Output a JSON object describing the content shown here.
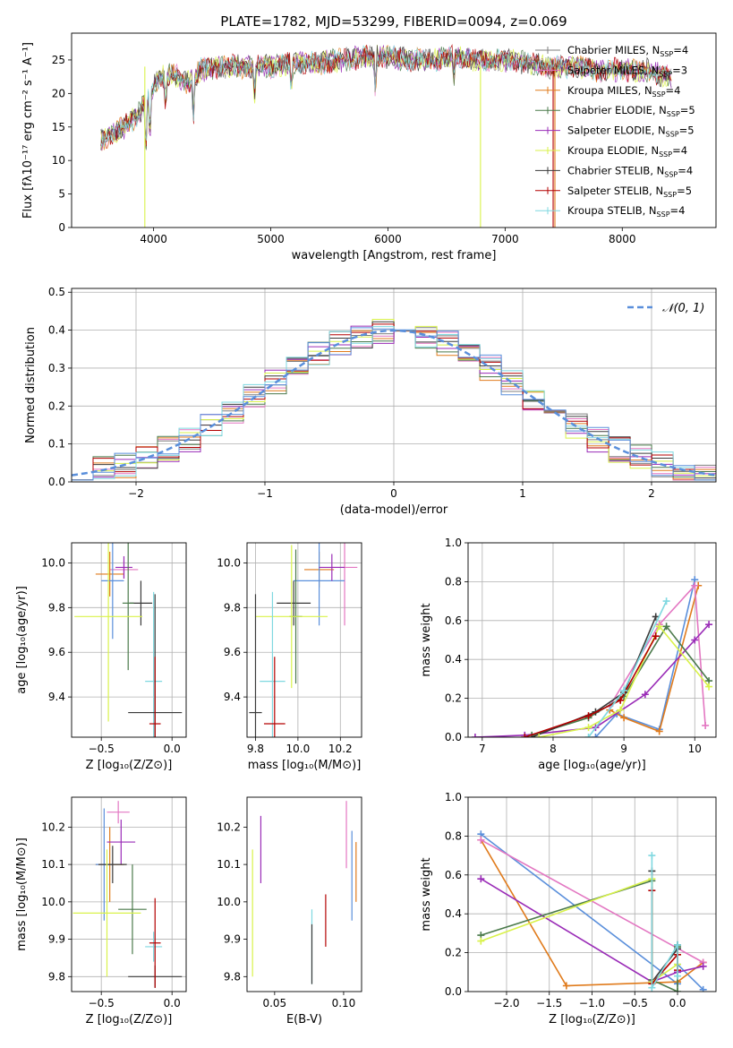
{
  "figure": {
    "title": "PLATE=1782, MJD=53299, FIBERID=0094, z=0.069"
  },
  "colors": {
    "chab_miles": "#7f7f7f",
    "salp_miles": "#e377c2",
    "krou_miles": "#e07b1c",
    "chab_elodie": "#4b7a4b",
    "salp_elodie": "#9a2cb7",
    "krou_elodie": "#d9f24a",
    "chab_stelib": "#3a3a3a",
    "salp_stelib": "#b30000",
    "krou_stelib": "#7fd8e0",
    "normal": "#5a8fdb",
    "blue": "#5a8fdb"
  },
  "chart_data": [
    {
      "id": "spectrum",
      "type": "line",
      "xlabel": "wavelength [Angstrom, rest frame]",
      "ylabel": "Flux [fλ10⁻¹⁷ erg cm⁻² s⁻¹ A⁻¹]",
      "xlim": [
        3300,
        8800
      ],
      "ylim": [
        0,
        29
      ],
      "xticks": [
        4000,
        5000,
        6000,
        7000,
        8000
      ],
      "yticks": [
        0,
        5,
        10,
        15,
        20,
        25
      ],
      "legend": "right",
      "series": [
        {
          "name": "Chabrier MILES, N_SSP=4",
          "color": "#7f7f7f"
        },
        {
          "name": "Salpeter MILES, N_SSP=3",
          "color": "#e377c2"
        },
        {
          "name": "Kroupa MILES, N_SSP=4",
          "color": "#e07b1c"
        },
        {
          "name": "Chabrier ELODIE, N_SSP=5",
          "color": "#4b7a4b"
        },
        {
          "name": "Salpeter ELODIE, N_SSP=5",
          "color": "#9a2cb7"
        },
        {
          "name": "Kroupa ELODIE, N_SSP=4",
          "color": "#d9f24a"
        },
        {
          "name": "Chabrier STELIB, N_SSP=4",
          "color": "#3a3a3a"
        },
        {
          "name": "Salpeter STELIB, N_SSP=5",
          "color": "#b30000"
        },
        {
          "name": "Kroupa STELIB, N_SSP=4",
          "color": "#7fd8e0"
        }
      ],
      "continuum": [
        [
          3550,
          13
        ],
        [
          3650,
          14
        ],
        [
          3750,
          15
        ],
        [
          3850,
          16.5
        ],
        [
          3950,
          19
        ],
        [
          4050,
          22.5
        ],
        [
          4150,
          23
        ],
        [
          4300,
          21.5
        ],
        [
          4400,
          23.5
        ],
        [
          4600,
          24
        ],
        [
          4800,
          24
        ],
        [
          5000,
          24
        ],
        [
          5200,
          24.5
        ],
        [
          5400,
          24.5
        ],
        [
          5600,
          25
        ],
        [
          5800,
          25.5
        ],
        [
          6000,
          25.5
        ],
        [
          6200,
          25
        ],
        [
          6400,
          25
        ],
        [
          6600,
          25.5
        ],
        [
          6800,
          25
        ],
        [
          7000,
          25
        ],
        [
          7200,
          24.5
        ],
        [
          7400,
          24
        ],
        [
          7600,
          24
        ],
        [
          7800,
          23.5
        ],
        [
          8000,
          23.5
        ],
        [
          8200,
          23.5
        ],
        [
          8400,
          22.5
        ]
      ],
      "dips": [
        [
          3934,
          8
        ],
        [
          3969,
          7
        ],
        [
          4102,
          5
        ],
        [
          4340,
          6
        ],
        [
          4861,
          5
        ],
        [
          5175,
          4
        ],
        [
          5893,
          6
        ],
        [
          6563,
          3
        ]
      ],
      "spikes": [
        [
          3925,
          0,
          "#d9f24a"
        ],
        [
          6790,
          0,
          "#d9f24a"
        ],
        [
          7425,
          0,
          "#e07b1c"
        ],
        [
          7410,
          0,
          "#b30000"
        ]
      ]
    },
    {
      "id": "hist",
      "type": "histogram",
      "xlabel": "(data-model)/error",
      "ylabel": "Normed distribution",
      "xlim": [
        -2.5,
        2.5
      ],
      "ylim": [
        0,
        0.51
      ],
      "xticks": [
        -2,
        -1,
        0,
        1,
        2
      ],
      "yticks": [
        0.0,
        0.1,
        0.2,
        0.3,
        0.4,
        0.5
      ],
      "legend": "top-right",
      "curve_label": "𝒩(0, 1)"
    },
    {
      "id": "age_z",
      "type": "scatter-errorbar",
      "xlabel": "Z [log₁₀(Z/Z⊙)]",
      "ylabel": "age  [log₁₀(age/yr)]",
      "xlim": [
        -0.71,
        0.1
      ],
      "ylim": [
        9.22,
        10.09
      ],
      "xticks": [
        -0.5,
        0.0
      ],
      "yticks": [
        9.4,
        9.6,
        9.8,
        10.0
      ],
      "points": [
        {
          "x": -0.34,
          "y": 9.97,
          "xe": 0.1,
          "ye": 0.04,
          "c": "#e377c2"
        },
        {
          "x": -0.44,
          "y": 9.95,
          "xe": 0.1,
          "ye": 0.1,
          "c": "#e07b1c"
        },
        {
          "x": -0.42,
          "y": 9.92,
          "xe": 0.08,
          "ye": 0.26,
          "c": "#5a8fdb"
        },
        {
          "x": -0.34,
          "y": 9.98,
          "xe": 0.06,
          "ye": 0.05,
          "c": "#9a2cb7"
        },
        {
          "x": -0.22,
          "y": 9.82,
          "xe": 0.08,
          "ye": 0.1,
          "c": "#3a3a3a"
        },
        {
          "x": -0.31,
          "y": 9.82,
          "xe": 0.04,
          "ye": 0.3,
          "c": "#4b7a4b"
        },
        {
          "x": -0.45,
          "y": 9.76,
          "xe": 0.24,
          "ye": 0.47,
          "c": "#d9f24a"
        },
        {
          "x": -0.13,
          "y": 9.47,
          "xe": 0.06,
          "ye": 0.4,
          "c": "#7fd8e0"
        },
        {
          "x": -0.12,
          "y": 9.33,
          "xe": 0.19,
          "ye": 0.53,
          "c": "#3a3a3a"
        },
        {
          "x": -0.12,
          "y": 9.28,
          "xe": 0.04,
          "ye": 0.3,
          "c": "#b30000"
        }
      ]
    },
    {
      "id": "age_mass",
      "type": "scatter-errorbar",
      "xlabel": "mass [log₁₀(M/M⊙)]",
      "ylabel": "",
      "xlim": [
        9.76,
        10.3
      ],
      "ylim": [
        9.22,
        10.09
      ],
      "xticks": [
        9.8,
        10.0,
        10.2
      ],
      "yticks": [
        9.4,
        9.6,
        9.8,
        10.0
      ],
      "points": [
        {
          "x": 10.22,
          "y": 9.98,
          "xe": 0.06,
          "ye": 0.26,
          "c": "#e377c2"
        },
        {
          "x": 10.1,
          "y": 9.97,
          "xe": 0.07,
          "ye": 0.08,
          "c": "#e07b1c"
        },
        {
          "x": 10.1,
          "y": 9.92,
          "xe": 0.12,
          "ye": 0.2,
          "c": "#5a8fdb"
        },
        {
          "x": 10.16,
          "y": 9.98,
          "xe": 0.06,
          "ye": 0.06,
          "c": "#9a2cb7"
        },
        {
          "x": 9.98,
          "y": 9.82,
          "xe": 0.08,
          "ye": 0.1,
          "c": "#3a3a3a"
        },
        {
          "x": 9.99,
          "y": 9.76,
          "xe": 0.03,
          "ye": 0.3,
          "c": "#4b7a4b"
        },
        {
          "x": 9.97,
          "y": 9.76,
          "xe": 0.17,
          "ye": 0.32,
          "c": "#d9f24a"
        },
        {
          "x": 9.88,
          "y": 9.47,
          "xe": 0.06,
          "ye": 0.4,
          "c": "#7fd8e0"
        },
        {
          "x": 9.8,
          "y": 9.33,
          "xe": 0.03,
          "ye": 0.53,
          "c": "#3a3a3a"
        },
        {
          "x": 9.89,
          "y": 9.28,
          "xe": 0.05,
          "ye": 0.3,
          "c": "#b30000"
        }
      ]
    },
    {
      "id": "mw_age",
      "type": "line",
      "xlabel": "age  [log₁₀(age/yr)]",
      "ylabel": "mass weight",
      "xlim": [
        6.8,
        10.3
      ],
      "ylim": [
        0,
        1.0
      ],
      "xticks": [
        7,
        8,
        9,
        10
      ],
      "yticks": [
        0.0,
        0.2,
        0.4,
        0.6,
        0.8,
        1.0
      ],
      "lines": [
        {
          "c": "#5a8fdb",
          "pts": [
            [
              8.6,
              0.0
            ],
            [
              8.9,
              0.12
            ],
            [
              9.5,
              0.04
            ],
            [
              10.0,
              0.81
            ]
          ]
        },
        {
          "c": "#e07b1c",
          "pts": [
            [
              8.8,
              0.14
            ],
            [
              9.0,
              0.1
            ],
            [
              9.5,
              0.03
            ],
            [
              10.05,
              0.78
            ]
          ]
        },
        {
          "c": "#e377c2",
          "pts": [
            [
              8.8,
              0.16
            ],
            [
              9.5,
              0.58
            ],
            [
              10.0,
              0.78
            ],
            [
              10.15,
              0.06
            ]
          ]
        },
        {
          "c": "#9a2cb7",
          "pts": [
            [
              6.9,
              0.0
            ],
            [
              7.6,
              0.01
            ],
            [
              8.6,
              0.05
            ],
            [
              9.3,
              0.22
            ],
            [
              10.0,
              0.5
            ],
            [
              10.2,
              0.58
            ]
          ]
        },
        {
          "c": "#4b7a4b",
          "pts": [
            [
              7.7,
              0.01
            ],
            [
              8.5,
              0.1
            ],
            [
              9.0,
              0.21
            ],
            [
              9.6,
              0.57
            ],
            [
              10.2,
              0.29
            ]
          ]
        },
        {
          "c": "#3a3a3a",
          "pts": [
            [
              7.7,
              0.0
            ],
            [
              8.6,
              0.13
            ],
            [
              9.0,
              0.23
            ],
            [
              9.45,
              0.62
            ]
          ]
        },
        {
          "c": "#d9f24a",
          "pts": [
            [
              7.8,
              0.0
            ],
            [
              8.5,
              0.05
            ],
            [
              8.95,
              0.14
            ],
            [
              9.5,
              0.57
            ],
            [
              10.2,
              0.26
            ]
          ]
        },
        {
          "c": "#b30000",
          "pts": [
            [
              7.6,
              0.0
            ],
            [
              8.5,
              0.11
            ],
            [
              8.95,
              0.19
            ],
            [
              9.45,
              0.52
            ]
          ]
        },
        {
          "c": "#7fd8e0",
          "pts": [
            [
              8.5,
              0.0
            ],
            [
              9.0,
              0.24
            ],
            [
              9.6,
              0.7
            ]
          ]
        }
      ]
    },
    {
      "id": "mass_z",
      "type": "scatter-errorbar",
      "xlabel": "Z [log₁₀(Z/Z⊙)]",
      "ylabel": "mass [log₁₀(M/M⊙)]",
      "xlim": [
        -0.71,
        0.1
      ],
      "ylim": [
        9.76,
        10.28
      ],
      "xticks": [
        -0.5,
        0.0
      ],
      "yticks": [
        9.8,
        9.9,
        10.0,
        10.1,
        10.2
      ],
      "points": [
        {
          "x": -0.38,
          "y": 10.24,
          "xe": 0.08,
          "ye": 0.03,
          "c": "#e377c2"
        },
        {
          "x": -0.44,
          "y": 10.1,
          "xe": 0.1,
          "ye": 0.1,
          "c": "#e07b1c"
        },
        {
          "x": -0.48,
          "y": 10.1,
          "xe": 0.06,
          "ye": 0.15,
          "c": "#5a8fdb"
        },
        {
          "x": -0.36,
          "y": 10.16,
          "xe": 0.1,
          "ye": 0.06,
          "c": "#9a2cb7"
        },
        {
          "x": -0.42,
          "y": 10.1,
          "xe": 0.1,
          "ye": 0.05,
          "c": "#3a3a3a"
        },
        {
          "x": -0.28,
          "y": 9.98,
          "xe": 0.1,
          "ye": 0.12,
          "c": "#4b7a4b"
        },
        {
          "x": -0.46,
          "y": 9.97,
          "xe": 0.24,
          "ye": 0.17,
          "c": "#d9f24a"
        },
        {
          "x": -0.13,
          "y": 9.88,
          "xe": 0.06,
          "ye": 0.04,
          "c": "#7fd8e0"
        },
        {
          "x": -0.12,
          "y": 9.8,
          "xe": 0.19,
          "ye": 0.03,
          "c": "#3a3a3a"
        },
        {
          "x": -0.12,
          "y": 9.89,
          "xe": 0.04,
          "ye": 0.12,
          "c": "#b30000"
        }
      ]
    },
    {
      "id": "mass_ebv",
      "type": "errorbar",
      "xlabel": "E(B-V)",
      "ylabel": "",
      "xlim": [
        0.03,
        0.113
      ],
      "ylim": [
        9.76,
        10.28
      ],
      "xticks": [
        0.05,
        0.1
      ],
      "yticks": [
        9.8,
        9.9,
        10.0,
        10.1,
        10.2
      ],
      "points": [
        {
          "x": 0.034,
          "y": 9.97,
          "ye": 0.17,
          "c": "#d9f24a"
        },
        {
          "x": 0.04,
          "y": 10.14,
          "ye": 0.09,
          "c": "#9a2cb7"
        },
        {
          "x": 0.077,
          "y": 9.88,
          "ye": 0.1,
          "c": "#7fd8e0"
        },
        {
          "x": 0.077,
          "y": 9.86,
          "ye": 0.08,
          "c": "#3a3a3a"
        },
        {
          "x": 0.087,
          "y": 9.95,
          "ye": 0.07,
          "c": "#b30000"
        },
        {
          "x": 0.102,
          "y": 10.18,
          "ye": 0.09,
          "c": "#e377c2"
        },
        {
          "x": 0.106,
          "y": 10.07,
          "ye": 0.12,
          "c": "#5a8fdb"
        },
        {
          "x": 0.109,
          "y": 10.08,
          "ye": 0.08,
          "c": "#e07b1c"
        }
      ]
    },
    {
      "id": "mw_z",
      "type": "line",
      "xlabel": "Z [log₁₀(Z/Z⊙)]",
      "ylabel": "mass weight",
      "xlim": [
        -2.45,
        0.45
      ],
      "ylim": [
        0,
        1.0
      ],
      "xticks": [
        -2.0,
        -1.5,
        -1.0,
        -0.5,
        0.0
      ],
      "yticks": [
        0.0,
        0.2,
        0.4,
        0.6,
        0.8,
        1.0
      ],
      "lines": [
        {
          "c": "#5a8fdb",
          "pts": [
            [
              -2.3,
              0.81
            ],
            [
              0.0,
              0.04
            ],
            [
              0.0,
              0.14
            ],
            [
              0.3,
              0.01
            ]
          ]
        },
        {
          "c": "#e07b1c",
          "pts": [
            [
              -2.3,
              0.78
            ],
            [
              -1.3,
              0.03
            ],
            [
              0.0,
              0.05
            ],
            [
              0.3,
              0.15
            ]
          ]
        },
        {
          "c": "#e377c2",
          "pts": [
            [
              -2.3,
              0.78
            ],
            [
              0.3,
              0.15
            ]
          ]
        },
        {
          "c": "#9a2cb7",
          "pts": [
            [
              -2.3,
              0.58
            ],
            [
              -0.3,
              0.05
            ],
            [
              0.0,
              0.1
            ],
            [
              0.3,
              0.13
            ]
          ]
        },
        {
          "c": "#4b7a4b",
          "pts": [
            [
              -2.3,
              0.29
            ],
            [
              -0.3,
              0.57
            ],
            [
              -0.3,
              0.06
            ],
            [
              0.0,
              0.0
            ],
            [
              0.0,
              0.23
            ]
          ]
        },
        {
          "c": "#3a3a3a",
          "pts": [
            [
              -0.3,
              0.62
            ],
            [
              -0.3,
              0.05
            ],
            [
              0.0,
              0.22
            ],
            [
              0.0,
              0.24
            ]
          ]
        },
        {
          "c": "#d9f24a",
          "pts": [
            [
              -2.3,
              0.26
            ],
            [
              -0.3,
              0.58
            ],
            [
              -0.3,
              0.05
            ],
            [
              0.0,
              0.14
            ]
          ]
        },
        {
          "c": "#b30000",
          "pts": [
            [
              -0.3,
              0.52
            ],
            [
              -0.3,
              0.04
            ],
            [
              0.0,
              0.19
            ],
            [
              0.0,
              0.11
            ]
          ]
        },
        {
          "c": "#7fd8e0",
          "pts": [
            [
              -0.3,
              0.7
            ],
            [
              -0.3,
              0.02
            ],
            [
              0.0,
              0.24
            ],
            [
              0.0,
              0.08
            ]
          ]
        }
      ]
    }
  ]
}
